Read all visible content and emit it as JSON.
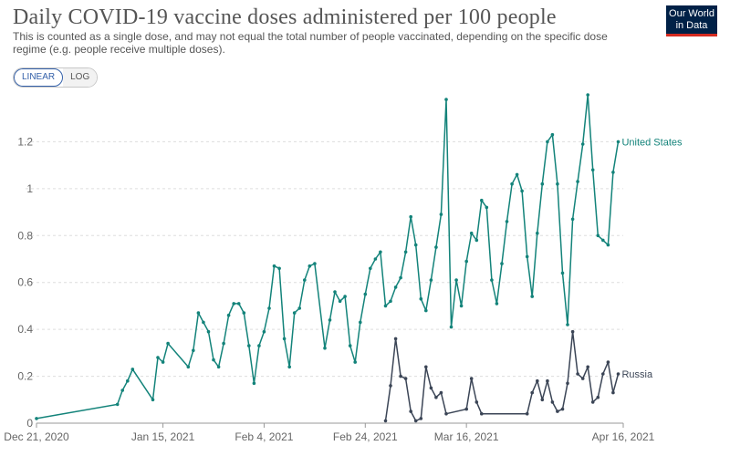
{
  "header": {
    "title": "Daily COVID-19 vaccine doses administered per 100 people",
    "subtitle": "This is counted as a single dose, and may not equal the total number of people vaccinated, depending on the specific dose regime (e.g. people receive multiple doses).",
    "logo_line1": "Our World",
    "logo_line2": "in Data"
  },
  "controls": {
    "linear_label": "LINEAR",
    "log_label": "LOG",
    "active": "linear"
  },
  "colors": {
    "united_states": "#13837a",
    "russia": "#3b4556",
    "grid": "#dddddd",
    "axis_text": "#666666"
  },
  "chart_data": {
    "type": "line",
    "title": "Daily COVID-19 vaccine doses administered per 100 people",
    "xlabel": "",
    "ylabel": "",
    "x_type": "date",
    "x_range": [
      "2020-12-21",
      "2021-04-16"
    ],
    "ylim": [
      0,
      1.4
    ],
    "y_ticks": [
      0,
      0.2,
      0.4,
      0.6,
      0.8,
      1,
      1.2
    ],
    "y_tick_labels": [
      "0",
      "0.2",
      "0.4",
      "0.6",
      "0.8",
      "1",
      "1.2"
    ],
    "x_ticks": [
      "2020-12-21",
      "2021-01-15",
      "2021-02-04",
      "2021-02-24",
      "2021-03-16",
      "2021-04-16"
    ],
    "x_tick_labels": [
      "Dec 21, 2020",
      "Jan 15, 2021",
      "Feb 4, 2021",
      "Feb 24, 2021",
      "Mar 16, 2021",
      "Apr 16, 2021"
    ],
    "grid": true,
    "legend": "labels at line ends",
    "series": [
      {
        "name": "United States",
        "color": "#13837a",
        "points": [
          [
            "2020-12-21",
            0.02
          ],
          [
            "2021-01-06",
            0.08
          ],
          [
            "2021-01-07",
            0.14
          ],
          [
            "2021-01-08",
            0.18
          ],
          [
            "2021-01-09",
            0.23
          ],
          [
            "2021-01-13",
            0.1
          ],
          [
            "2021-01-14",
            0.28
          ],
          [
            "2021-01-15",
            0.26
          ],
          [
            "2021-01-16",
            0.34
          ],
          [
            "2021-01-20",
            0.24
          ],
          [
            "2021-01-21",
            0.31
          ],
          [
            "2021-01-22",
            0.47
          ],
          [
            "2021-01-23",
            0.43
          ],
          [
            "2021-01-24",
            0.39
          ],
          [
            "2021-01-25",
            0.27
          ],
          [
            "2021-01-26",
            0.24
          ],
          [
            "2021-01-27",
            0.34
          ],
          [
            "2021-01-28",
            0.46
          ],
          [
            "2021-01-29",
            0.51
          ],
          [
            "2021-01-30",
            0.51
          ],
          [
            "2021-01-31",
            0.47
          ],
          [
            "2021-02-01",
            0.33
          ],
          [
            "2021-02-02",
            0.17
          ],
          [
            "2021-02-03",
            0.33
          ],
          [
            "2021-02-04",
            0.39
          ],
          [
            "2021-02-05",
            0.49
          ],
          [
            "2021-02-06",
            0.67
          ],
          [
            "2021-02-07",
            0.66
          ],
          [
            "2021-02-08",
            0.36
          ],
          [
            "2021-02-09",
            0.24
          ],
          [
            "2021-02-10",
            0.47
          ],
          [
            "2021-02-11",
            0.49
          ],
          [
            "2021-02-12",
            0.61
          ],
          [
            "2021-02-13",
            0.67
          ],
          [
            "2021-02-14",
            0.68
          ],
          [
            "2021-02-16",
            0.32
          ],
          [
            "2021-02-17",
            0.44
          ],
          [
            "2021-02-18",
            0.56
          ],
          [
            "2021-02-19",
            0.52
          ],
          [
            "2021-02-20",
            0.54
          ],
          [
            "2021-02-21",
            0.33
          ],
          [
            "2021-02-22",
            0.26
          ],
          [
            "2021-02-23",
            0.43
          ],
          [
            "2021-02-24",
            0.55
          ],
          [
            "2021-02-25",
            0.66
          ],
          [
            "2021-02-26",
            0.7
          ],
          [
            "2021-02-27",
            0.73
          ],
          [
            "2021-02-28",
            0.5
          ],
          [
            "2021-03-01",
            0.52
          ],
          [
            "2021-03-02",
            0.58
          ],
          [
            "2021-03-03",
            0.62
          ],
          [
            "2021-03-04",
            0.73
          ],
          [
            "2021-03-05",
            0.88
          ],
          [
            "2021-03-06",
            0.76
          ],
          [
            "2021-03-07",
            0.53
          ],
          [
            "2021-03-08",
            0.48
          ],
          [
            "2021-03-09",
            0.61
          ],
          [
            "2021-03-10",
            0.75
          ],
          [
            "2021-03-11",
            0.89
          ],
          [
            "2021-03-12",
            1.38
          ],
          [
            "2021-03-13",
            0.41
          ],
          [
            "2021-03-14",
            0.61
          ],
          [
            "2021-03-15",
            0.5
          ],
          [
            "2021-03-16",
            0.69
          ],
          [
            "2021-03-17",
            0.81
          ],
          [
            "2021-03-18",
            0.78
          ],
          [
            "2021-03-19",
            0.95
          ],
          [
            "2021-03-20",
            0.92
          ],
          [
            "2021-03-21",
            0.61
          ],
          [
            "2021-03-22",
            0.51
          ],
          [
            "2021-03-23",
            0.68
          ],
          [
            "2021-03-24",
            0.86
          ],
          [
            "2021-03-25",
            1.02
          ],
          [
            "2021-03-26",
            1.06
          ],
          [
            "2021-03-27",
            0.99
          ],
          [
            "2021-03-28",
            0.71
          ],
          [
            "2021-03-29",
            0.54
          ],
          [
            "2021-03-30",
            0.81
          ],
          [
            "2021-03-31",
            1.02
          ],
          [
            "2021-04-01",
            1.2
          ],
          [
            "2021-04-02",
            1.23
          ],
          [
            "2021-04-03",
            1.02
          ],
          [
            "2021-04-04",
            0.64
          ],
          [
            "2021-04-05",
            0.42
          ],
          [
            "2021-04-06",
            0.87
          ],
          [
            "2021-04-07",
            1.03
          ],
          [
            "2021-04-08",
            1.19
          ],
          [
            "2021-04-09",
            1.4
          ],
          [
            "2021-04-10",
            1.08
          ],
          [
            "2021-04-11",
            0.8
          ],
          [
            "2021-04-12",
            0.78
          ],
          [
            "2021-04-13",
            0.76
          ],
          [
            "2021-04-14",
            1.07
          ],
          [
            "2021-04-15",
            1.2
          ]
        ]
      },
      {
        "name": "Russia",
        "color": "#3b4556",
        "points": [
          [
            "2021-02-28",
            0.01
          ],
          [
            "2021-03-01",
            0.16
          ],
          [
            "2021-03-02",
            0.36
          ],
          [
            "2021-03-03",
            0.2
          ],
          [
            "2021-03-04",
            0.19
          ],
          [
            "2021-03-05",
            0.05
          ],
          [
            "2021-03-06",
            0.01
          ],
          [
            "2021-03-07",
            0.02
          ],
          [
            "2021-03-08",
            0.24
          ],
          [
            "2021-03-09",
            0.15
          ],
          [
            "2021-03-10",
            0.11
          ],
          [
            "2021-03-11",
            0.13
          ],
          [
            "2021-03-12",
            0.04
          ],
          [
            "2021-03-16",
            0.06
          ],
          [
            "2021-03-17",
            0.19
          ],
          [
            "2021-03-18",
            0.09
          ],
          [
            "2021-03-19",
            0.04
          ],
          [
            "2021-03-28",
            0.04
          ],
          [
            "2021-03-29",
            0.13
          ],
          [
            "2021-03-30",
            0.18
          ],
          [
            "2021-03-31",
            0.1
          ],
          [
            "2021-04-01",
            0.18
          ],
          [
            "2021-04-02",
            0.09
          ],
          [
            "2021-04-03",
            0.05
          ],
          [
            "2021-04-04",
            0.06
          ],
          [
            "2021-04-05",
            0.17
          ],
          [
            "2021-04-06",
            0.39
          ],
          [
            "2021-04-07",
            0.21
          ],
          [
            "2021-04-08",
            0.19
          ],
          [
            "2021-04-09",
            0.24
          ],
          [
            "2021-04-10",
            0.09
          ],
          [
            "2021-04-11",
            0.11
          ],
          [
            "2021-04-12",
            0.21
          ],
          [
            "2021-04-13",
            0.26
          ],
          [
            "2021-04-14",
            0.13
          ],
          [
            "2021-04-15",
            0.21
          ]
        ]
      }
    ]
  }
}
